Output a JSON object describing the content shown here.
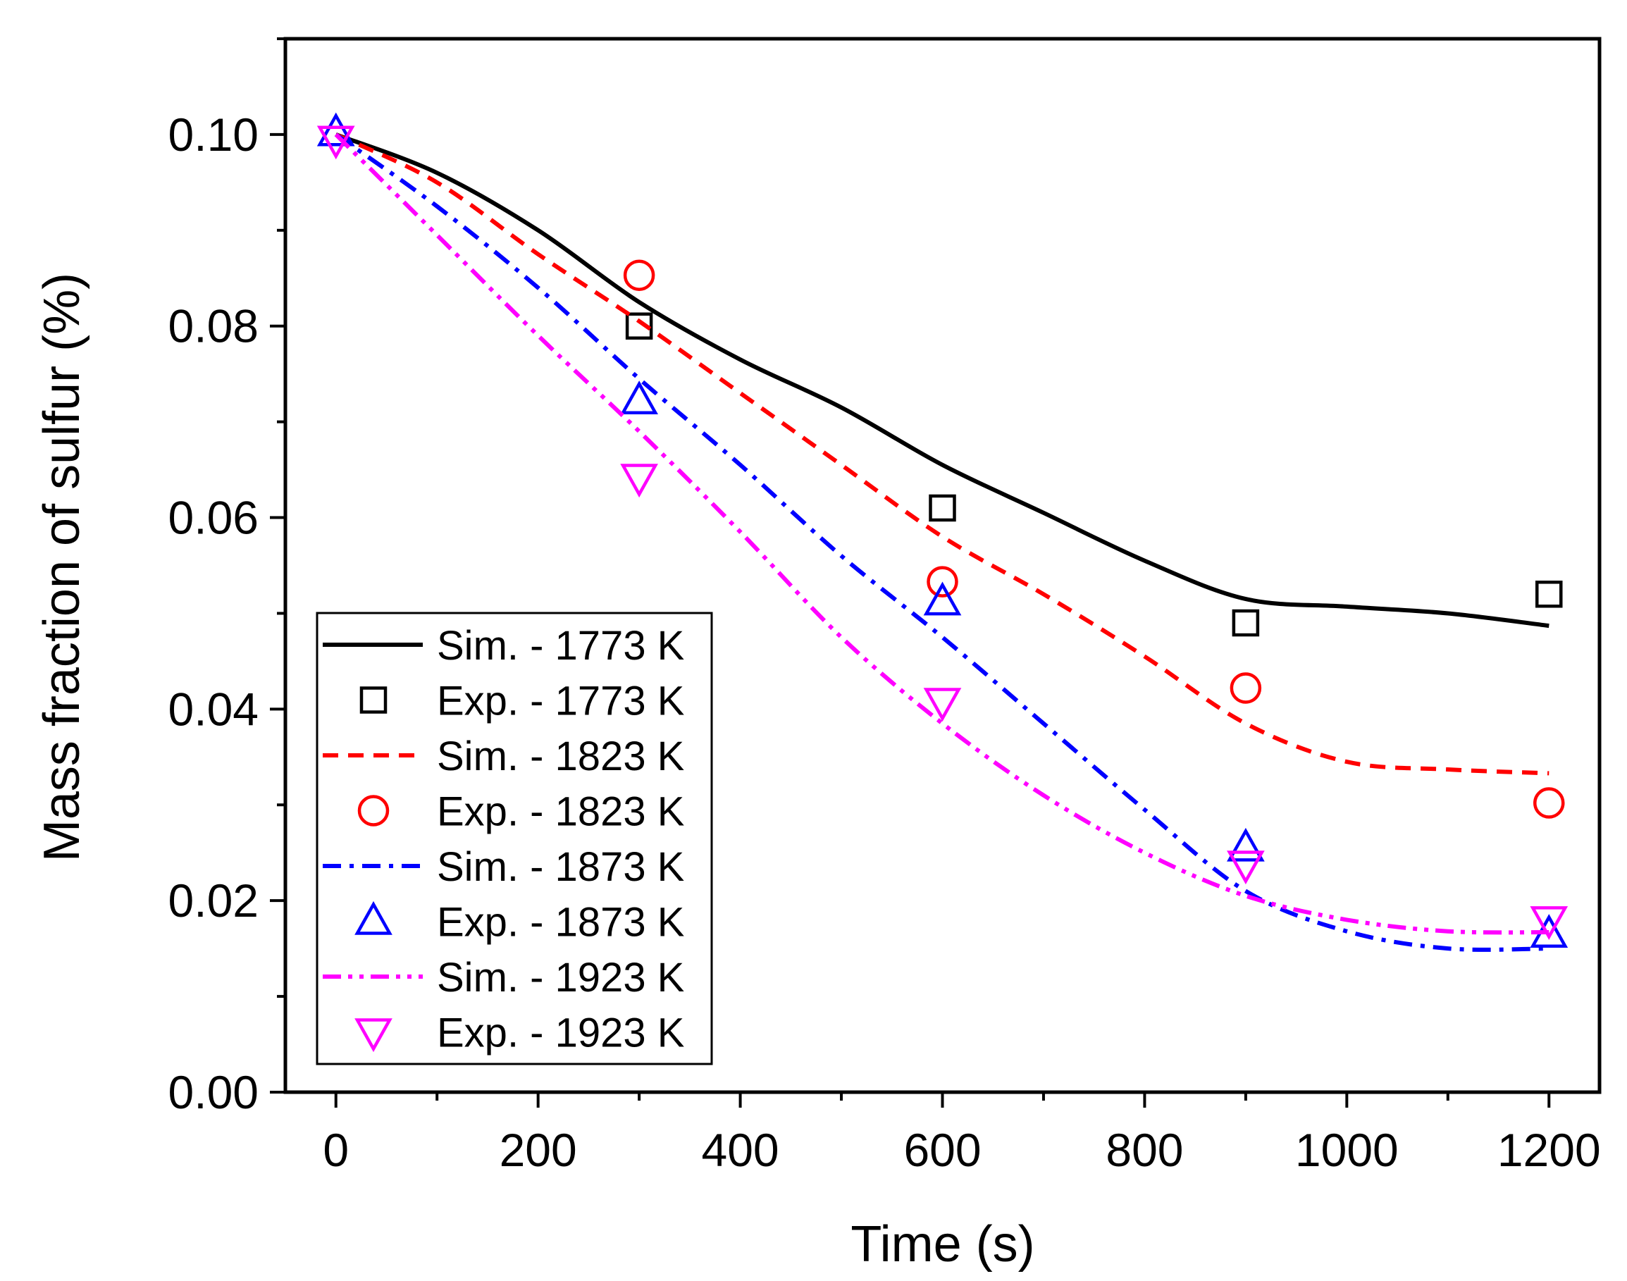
{
  "chart_data": {
    "type": "line",
    "title": "",
    "xlabel": "Time (s)",
    "ylabel": "Mass fraction of sulfur (%)",
    "xlim": [
      -50,
      1250
    ],
    "ylim": [
      0,
      0.11
    ],
    "x_ticks": [
      0,
      200,
      400,
      600,
      800,
      1000,
      1200
    ],
    "x_tick_labels": [
      "0",
      "200",
      "400",
      "600",
      "800",
      "1000",
      "1200"
    ],
    "y_ticks": [
      0,
      0.02,
      0.04,
      0.06,
      0.08,
      0.1
    ],
    "y_tick_labels": [
      "0.00",
      "0.02",
      "0.04",
      "0.06",
      "0.08",
      "0.10"
    ],
    "legend_position": "bottom-left",
    "series": [
      {
        "name": "Sim. - 1773 K",
        "kind": "line",
        "color": "#000000",
        "dash": "solid",
        "x": [
          0,
          100,
          200,
          300,
          400,
          500,
          600,
          700,
          800,
          900,
          1000,
          1100,
          1200
        ],
        "y": [
          0.1,
          0.096,
          0.09,
          0.0825,
          0.0765,
          0.0715,
          0.0655,
          0.0605,
          0.0555,
          0.0515,
          0.0507,
          0.05,
          0.0487
        ]
      },
      {
        "name": "Exp. - 1773 K",
        "kind": "marker",
        "marker": "square",
        "color": "#000000",
        "x": [
          300,
          600,
          900,
          1200
        ],
        "y": [
          0.08,
          0.061,
          0.049,
          0.052
        ]
      },
      {
        "name": "Sim. - 1823 K",
        "kind": "line",
        "color": "#ff0000",
        "dash": "dash",
        "x": [
          0,
          100,
          200,
          300,
          400,
          500,
          600,
          700,
          800,
          900,
          1000,
          1100,
          1200
        ],
        "y": [
          0.1,
          0.095,
          0.0875,
          0.0805,
          0.073,
          0.0655,
          0.058,
          0.052,
          0.0455,
          0.0385,
          0.0345,
          0.0337,
          0.0333
        ]
      },
      {
        "name": "Exp. - 1823 K",
        "kind": "marker",
        "marker": "circle",
        "color": "#ff0000",
        "x": [
          300,
          600,
          900,
          1200
        ],
        "y": [
          0.0853,
          0.0533,
          0.0422,
          0.0302
        ]
      },
      {
        "name": "Sim. - 1873 K",
        "kind": "line",
        "color": "#0000ff",
        "dash": "dashdot",
        "x": [
          0,
          100,
          200,
          300,
          400,
          500,
          600,
          700,
          800,
          900,
          1000,
          1100,
          1200
        ],
        "y": [
          0.1,
          0.0925,
          0.084,
          0.0745,
          0.0655,
          0.056,
          0.0475,
          0.0385,
          0.0295,
          0.021,
          0.0168,
          0.015,
          0.015
        ]
      },
      {
        "name": "Exp. - 1873 K",
        "kind": "marker",
        "marker": "triangle-up",
        "color": "#0000ff",
        "x": [
          0,
          300,
          600,
          900,
          1200
        ],
        "y": [
          0.1002,
          0.0722,
          0.0512,
          0.0255,
          0.0165
        ]
      },
      {
        "name": "Sim. - 1923 K",
        "kind": "line",
        "color": "#ff00ff",
        "dash": "dashdotdot",
        "x": [
          0,
          100,
          200,
          300,
          400,
          500,
          600,
          700,
          800,
          900,
          1000,
          1100,
          1200
        ],
        "y": [
          0.1,
          0.0895,
          0.079,
          0.069,
          0.0585,
          0.0475,
          0.0385,
          0.031,
          0.025,
          0.0205,
          0.018,
          0.0168,
          0.0167
        ]
      },
      {
        "name": "Exp. - 1923 K",
        "kind": "marker",
        "marker": "triangle-down",
        "color": "#ff00ff",
        "x": [
          0,
          300,
          600,
          900,
          1200
        ],
        "y": [
          0.0995,
          0.0642,
          0.0408,
          0.0238,
          0.018
        ]
      }
    ]
  }
}
